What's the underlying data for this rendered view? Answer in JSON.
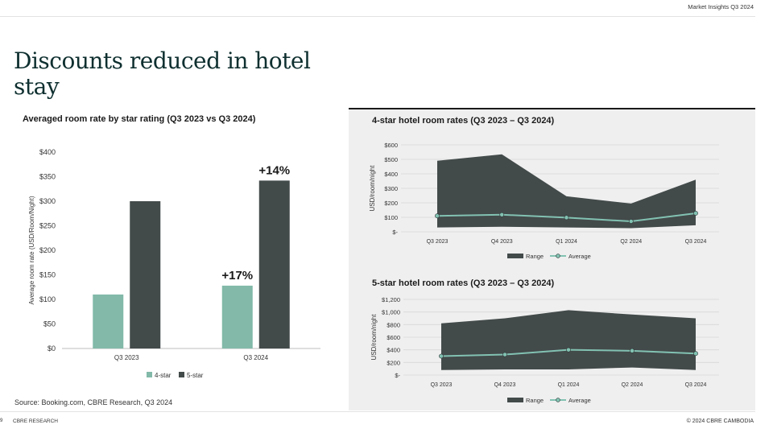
{
  "header": {
    "label": "Market Insights Q3 2024"
  },
  "title": "Discounts reduced in hotel stay",
  "source": "Source: Booking.com, CBRE Research, Q3 2024",
  "footer": {
    "page": "9",
    "left": "CBRE RESEARCH",
    "right": "© 2024 CBRE CAMBODIA"
  },
  "colors": {
    "four_star": "#82b9a8",
    "five_star": "#434a4a",
    "range": "#434a4a",
    "average": "#82c2b2"
  },
  "chart_data": [
    {
      "type": "bar",
      "title": "Averaged room rate by star rating (Q3 2023 vs Q3 2024)",
      "ylabel": "Average room rate (USD/Room/Night)",
      "xlabel": "",
      "categories": [
        "Q3 2023",
        "Q3 2024"
      ],
      "ylim": [
        0,
        400
      ],
      "yticks": [
        "$0",
        "$50",
        "$100",
        "$150",
        "$200",
        "$250",
        "$300",
        "$350",
        "$400"
      ],
      "series": [
        {
          "name": "4-star",
          "values": [
            110,
            128
          ]
        },
        {
          "name": "5-star",
          "values": [
            300,
            342
          ]
        }
      ],
      "annotations": [
        {
          "text": "+17%",
          "category": "Q3 2024",
          "series": "4-star"
        },
        {
          "text": "+14%",
          "category": "Q3 2024",
          "series": "5-star"
        }
      ],
      "legend": "bottom"
    },
    {
      "type": "area",
      "title": "4-star hotel room rates (Q3 2023 – Q3 2024)",
      "ylabel": "USD/room/night",
      "categories": [
        "Q3 2023",
        "Q4 2023",
        "Q1 2024",
        "Q2 2024",
        "Q3 2024"
      ],
      "ylim": [
        0,
        600
      ],
      "yticks": [
        "$-",
        "$100",
        "$200",
        "$300",
        "$400",
        "$500",
        "$600"
      ],
      "series": [
        {
          "name": "Range",
          "low": [
            30,
            35,
            30,
            25,
            45
          ],
          "high": [
            490,
            535,
            245,
            195,
            360
          ]
        },
        {
          "name": "Average",
          "values": [
            110,
            118,
            98,
            72,
            128
          ]
        }
      ],
      "legend": "bottom"
    },
    {
      "type": "area",
      "title": "5-star hotel room rates (Q3 2023 – Q3 2024)",
      "ylabel": "USD/room/night",
      "categories": [
        "Q3 2023",
        "Q4 2023",
        "Q1 2024",
        "Q2 2024",
        "Q3 2024"
      ],
      "ylim": [
        0,
        1200
      ],
      "yticks": [
        "$-",
        "$200",
        "$400",
        "$600",
        "$800",
        "$1,000",
        "$1,200"
      ],
      "series": [
        {
          "name": "Range",
          "low": [
            80,
            90,
            90,
            120,
            80
          ],
          "high": [
            820,
            900,
            1030,
            960,
            900
          ]
        },
        {
          "name": "Average",
          "values": [
            300,
            325,
            400,
            385,
            342
          ]
        }
      ],
      "legend": "bottom"
    }
  ]
}
